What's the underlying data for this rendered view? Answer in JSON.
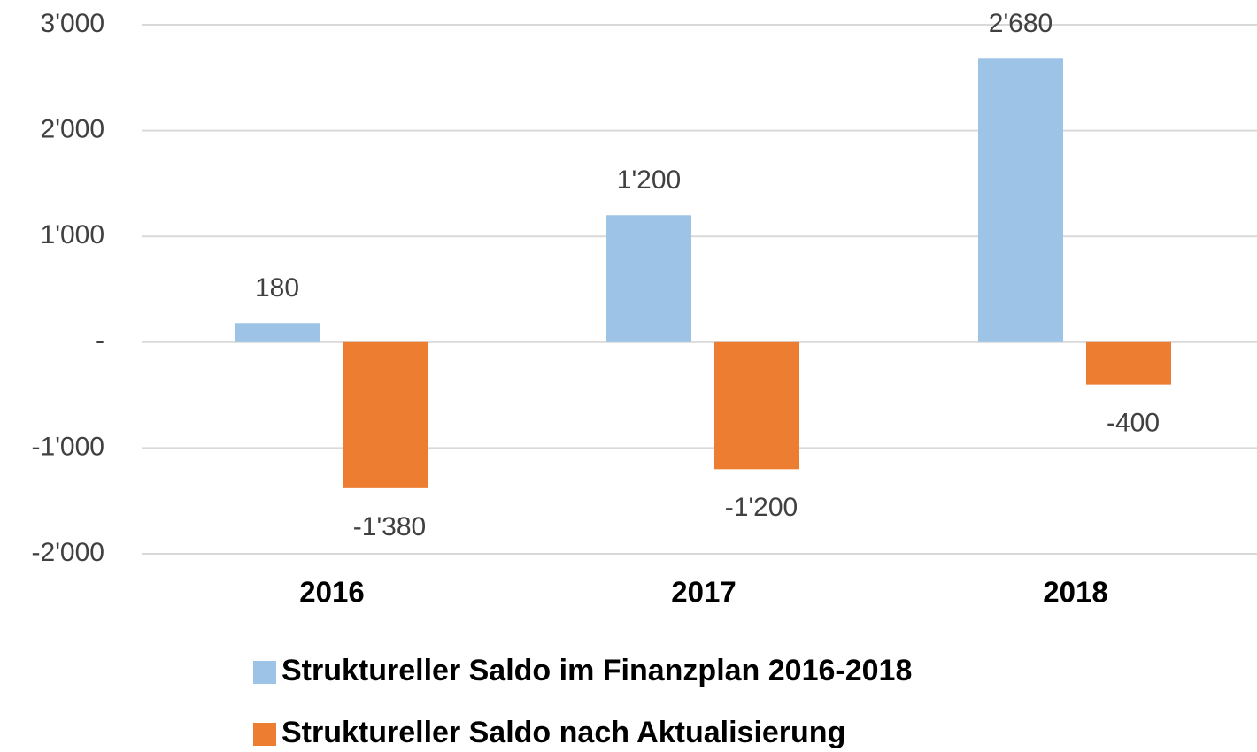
{
  "chart_data": {
    "type": "bar",
    "categories": [
      "2016",
      "2017",
      "2018"
    ],
    "series": [
      {
        "name": "Struktureller Saldo im Finanzplan 2016-2018",
        "color": "#9dc3e6",
        "values": [
          180,
          1200,
          2680
        ],
        "value_labels": [
          "180",
          "1'200",
          "2'680"
        ]
      },
      {
        "name": "Struktureller Saldo nach Aktualisierung",
        "color": "#ed7d31",
        "values": [
          -1380,
          -1200,
          -400
        ],
        "value_labels": [
          "-1'380",
          "-1'200",
          "-400"
        ]
      }
    ],
    "ylim": [
      -2000,
      3000
    ],
    "yticks": [
      {
        "value": -2000,
        "label": "-2'000"
      },
      {
        "value": -1000,
        "label": "-1'000"
      },
      {
        "value": 0,
        "label": "-"
      },
      {
        "value": 1000,
        "label": "1'000"
      },
      {
        "value": 2000,
        "label": "2'000"
      },
      {
        "value": 3000,
        "label": "3'000"
      }
    ],
    "grid": true
  }
}
